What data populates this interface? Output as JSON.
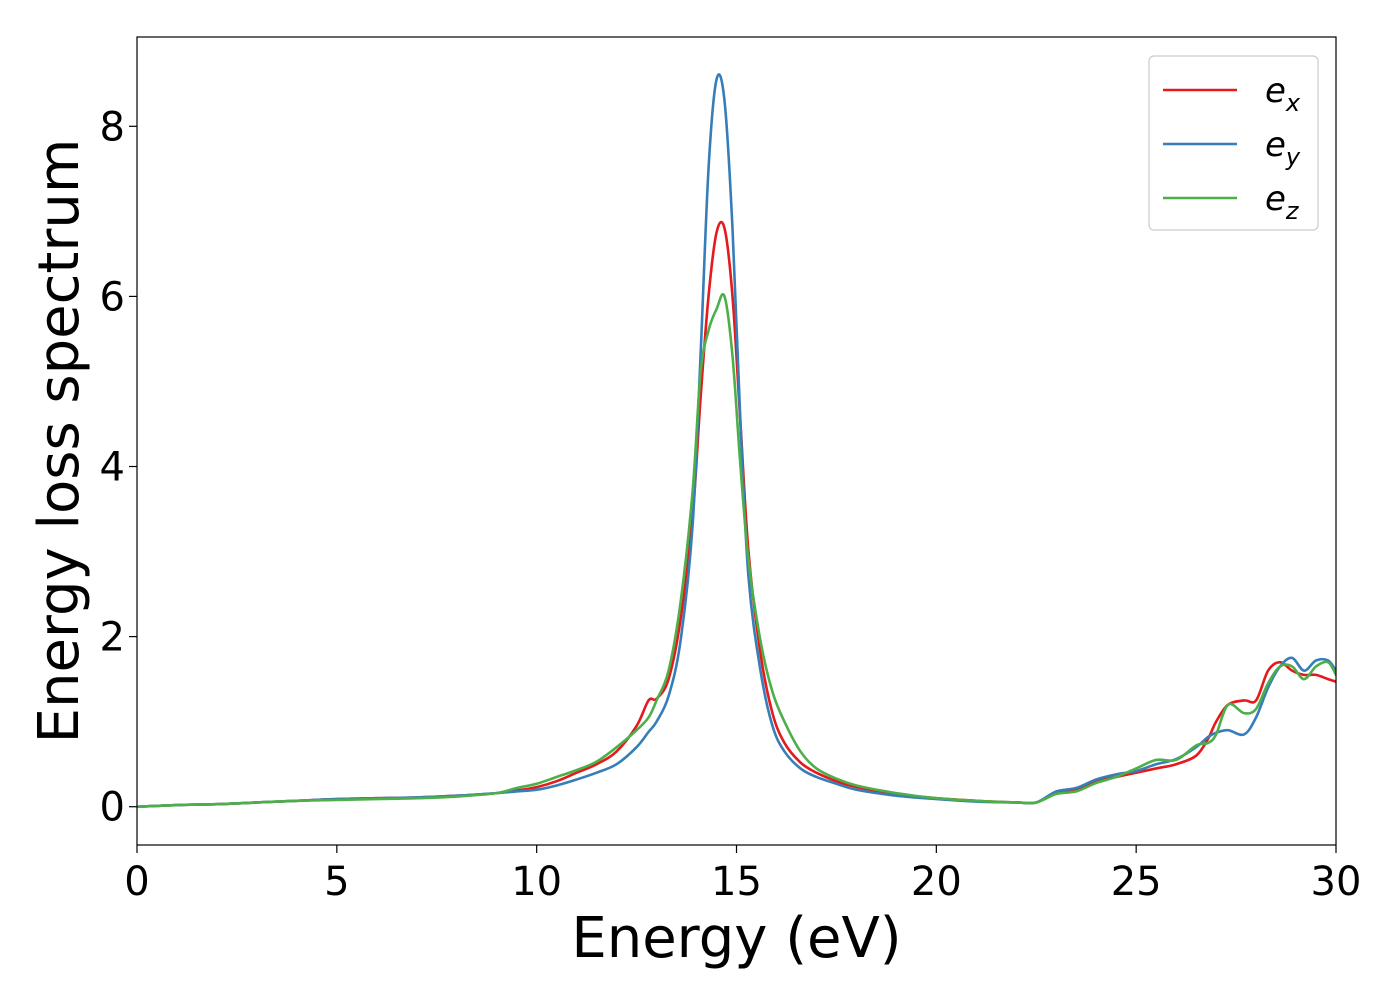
{
  "chart_data": {
    "type": "line",
    "xlabel": "Energy (eV)",
    "ylabel": "Energy loss spectrum",
    "xlim": [
      0,
      30
    ],
    "ylim": [
      -0.45,
      9.05
    ],
    "xticks": [
      0,
      5,
      10,
      15,
      20,
      25,
      30
    ],
    "yticks": [
      0,
      2,
      4,
      6,
      8
    ],
    "grid": false,
    "legend_position": "top-right",
    "series": [
      {
        "name": "e_x",
        "name_base": "e",
        "name_sub": "x",
        "color": "#e41a1c",
        "x": [
          0,
          1,
          2,
          3,
          4,
          5,
          6,
          7,
          8,
          9,
          9.5,
          10,
          10.5,
          11,
          11.5,
          12,
          12.5,
          12.8,
          13,
          13.3,
          13.6,
          13.9,
          14.1,
          14.3,
          14.5,
          14.7,
          14.9,
          15.1,
          15.3,
          15.6,
          15.9,
          16.2,
          16.6,
          17,
          17.5,
          18,
          19,
          20,
          21,
          22,
          22.5,
          23,
          23.5,
          24,
          24.5,
          25,
          25.5,
          26,
          26.5,
          26.8,
          27,
          27.3,
          27.7,
          28,
          28.3,
          28.6,
          28.9,
          29.2,
          29.5,
          29.8,
          30
        ],
        "y": [
          0,
          0.02,
          0.03,
          0.05,
          0.07,
          0.09,
          0.1,
          0.11,
          0.13,
          0.16,
          0.19,
          0.23,
          0.3,
          0.4,
          0.5,
          0.65,
          0.95,
          1.25,
          1.27,
          1.5,
          2.2,
          3.4,
          4.8,
          6.0,
          6.75,
          6.8,
          6.0,
          4.5,
          3.0,
          1.8,
          1.1,
          0.75,
          0.52,
          0.4,
          0.3,
          0.23,
          0.15,
          0.1,
          0.07,
          0.05,
          0.05,
          0.17,
          0.2,
          0.3,
          0.35,
          0.4,
          0.45,
          0.5,
          0.6,
          0.8,
          1.0,
          1.2,
          1.25,
          1.25,
          1.6,
          1.7,
          1.6,
          1.55,
          1.55,
          1.5,
          1.47
        ]
      },
      {
        "name": "e_y",
        "name_base": "e",
        "name_sub": "y",
        "color": "#377eb8",
        "x": [
          0,
          1,
          2,
          3,
          4,
          5,
          6,
          7,
          8,
          9,
          9.5,
          10,
          10.5,
          11,
          11.5,
          12,
          12.5,
          12.8,
          13,
          13.3,
          13.6,
          13.9,
          14.1,
          14.3,
          14.5,
          14.7,
          14.9,
          15.1,
          15.3,
          15.6,
          15.9,
          16.2,
          16.6,
          17,
          17.5,
          18,
          19,
          20,
          21,
          22,
          22.5,
          23,
          23.5,
          24,
          24.5,
          25,
          25.5,
          26,
          26.5,
          26.8,
          27,
          27.3,
          27.7,
          28,
          28.3,
          28.6,
          28.9,
          29.2,
          29.5,
          29.8,
          30
        ],
        "y": [
          0,
          0.02,
          0.03,
          0.05,
          0.07,
          0.09,
          0.1,
          0.11,
          0.13,
          0.16,
          0.18,
          0.2,
          0.25,
          0.32,
          0.4,
          0.5,
          0.7,
          0.88,
          1.0,
          1.3,
          1.95,
          3.3,
          5.3,
          7.5,
          8.55,
          8.3,
          6.8,
          4.5,
          2.7,
          1.6,
          0.95,
          0.65,
          0.45,
          0.35,
          0.27,
          0.2,
          0.13,
          0.09,
          0.06,
          0.05,
          0.05,
          0.18,
          0.22,
          0.32,
          0.38,
          0.42,
          0.5,
          0.56,
          0.7,
          0.82,
          0.87,
          0.9,
          0.85,
          1.05,
          1.4,
          1.65,
          1.75,
          1.6,
          1.72,
          1.72,
          1.6
        ]
      },
      {
        "name": "e_z",
        "name_base": "e",
        "name_sub": "z",
        "color": "#4daf4a",
        "x": [
          0,
          1,
          2,
          3,
          4,
          5,
          6,
          7,
          8,
          9,
          9.5,
          10,
          10.5,
          11,
          11.5,
          12,
          12.5,
          12.8,
          13,
          13.3,
          13.6,
          13.9,
          14.1,
          14.3,
          14.5,
          14.7,
          14.9,
          15.1,
          15.3,
          15.6,
          15.9,
          16.2,
          16.6,
          17,
          17.5,
          18,
          19,
          20,
          21,
          22,
          22.5,
          23,
          23.5,
          24,
          24.5,
          25,
          25.5,
          26,
          26.5,
          26.8,
          27,
          27.3,
          27.7,
          28,
          28.3,
          28.6,
          28.9,
          29.2,
          29.5,
          29.8,
          30
        ],
        "y": [
          0,
          0.02,
          0.03,
          0.05,
          0.07,
          0.08,
          0.09,
          0.1,
          0.12,
          0.16,
          0.22,
          0.27,
          0.35,
          0.43,
          0.53,
          0.7,
          0.9,
          1.05,
          1.25,
          1.6,
          2.4,
          3.7,
          5.1,
          5.6,
          5.85,
          6.0,
          5.3,
          4.0,
          2.9,
          1.95,
          1.35,
          1.0,
          0.65,
          0.45,
          0.33,
          0.25,
          0.16,
          0.1,
          0.07,
          0.05,
          0.05,
          0.15,
          0.18,
          0.28,
          0.35,
          0.45,
          0.55,
          0.55,
          0.72,
          0.75,
          0.85,
          1.2,
          1.1,
          1.15,
          1.45,
          1.65,
          1.65,
          1.5,
          1.65,
          1.7,
          1.55
        ]
      }
    ]
  }
}
